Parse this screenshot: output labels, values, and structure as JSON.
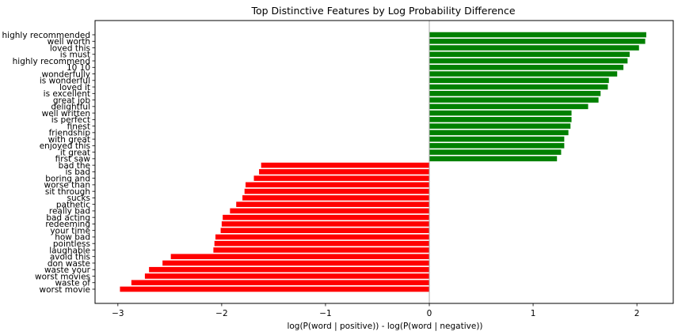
{
  "chart_data": {
    "type": "bar",
    "orientation": "horizontal",
    "title": "Top Distinctive Features by Log Probability Difference",
    "xlabel": "log(P(word | positive)) - log(P(word | negative))",
    "ylabel": "",
    "xlim": [
      -3.22,
      2.35
    ],
    "xticks": [
      -3,
      -2,
      -1,
      0,
      1,
      2
    ],
    "xtick_labels": [
      "−3",
      "−2",
      "−1",
      "0",
      "1",
      "2"
    ],
    "grid": false,
    "legend": "none",
    "colors": {
      "positive": "#008000",
      "negative": "#ff0000",
      "zero_line": "#a9a9a9"
    },
    "categories": [
      "highly recommended",
      "well worth",
      "loved this",
      "is must",
      "highly recommend",
      "10 10",
      "wonderfully",
      "is wonderful",
      "loved it",
      "is excellent",
      "great job",
      "delightful",
      "well written",
      "is perfect",
      "finest",
      "friendship",
      "with great",
      "enjoyed this",
      "it great",
      "first saw",
      "bad the",
      "is bad",
      "boring and",
      "worse than",
      "sit through",
      "sucks",
      "pathetic",
      "really bad",
      "bad acting",
      "redeeming",
      "your time",
      "how bad",
      "pointless",
      "laughable",
      "avoid this",
      "don waste",
      "waste your",
      "worst movies",
      "waste of",
      "worst movie"
    ],
    "values": [
      2.09,
      2.08,
      2.02,
      1.93,
      1.91,
      1.87,
      1.81,
      1.73,
      1.72,
      1.65,
      1.63,
      1.53,
      1.37,
      1.37,
      1.36,
      1.34,
      1.3,
      1.3,
      1.27,
      1.23,
      -1.62,
      -1.64,
      -1.69,
      -1.77,
      -1.78,
      -1.8,
      -1.86,
      -1.92,
      -1.99,
      -2.0,
      -2.01,
      -2.06,
      -2.07,
      -2.08,
      -2.49,
      -2.57,
      -2.7,
      -2.74,
      -2.87,
      -2.98
    ]
  }
}
